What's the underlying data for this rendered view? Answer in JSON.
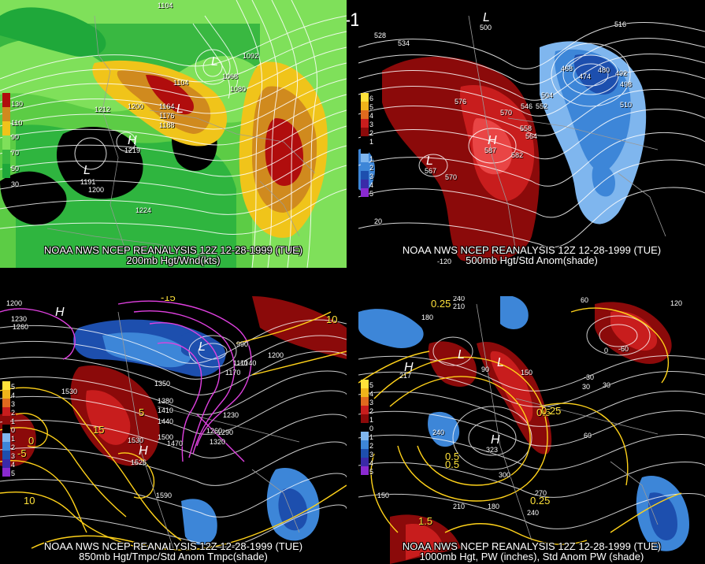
{
  "title": "12Z 12-28-1999 (TUE)",
  "panels": [
    {
      "caption_line1": "NOAA NWS NCEP REANALYSIS 12Z 12-28-1999 (TUE)",
      "caption_line2": "200mb Hgt/Wnd(kts)",
      "legend": [
        "130",
        "110",
        "90",
        "70",
        "50",
        "30"
      ],
      "labels": [
        "1104",
        "1092",
        "1068",
        "1080",
        "1200",
        "1212",
        "1164",
        "1176",
        "1188",
        "1200",
        "1224",
        "1219",
        "1191",
        "1104"
      ],
      "centers": [
        "L",
        "L",
        "H",
        "L"
      ]
    },
    {
      "caption_line1": "NOAA NWS NCEP REANALYSIS 12Z 12-28-1999 (TUE)",
      "caption_line2": "500mb Hgt/Std Anom(shade)",
      "legend": [
        "6",
        "5",
        "4",
        "3",
        "2",
        "1",
        "0",
        "1",
        "2",
        "3",
        "4",
        "5"
      ],
      "labels": [
        "528",
        "534",
        "516",
        "576",
        "570",
        "546",
        "552",
        "558",
        "564",
        "582",
        "504",
        "468",
        "474",
        "480",
        "492",
        "498",
        "510",
        "570",
        "567",
        "587",
        "20",
        "-120",
        "500"
      ],
      "centers": [
        "L",
        "L",
        "H"
      ]
    },
    {
      "caption_line1": "NOAA NWS NCEP REANALYSIS 12Z 12-28-1999 (TUE)",
      "caption_line2": "850mb Hgt/Tmpc/Std Anom Tmpc(shade)",
      "legend": [
        "5",
        "4",
        "3",
        "2",
        "1",
        "0",
        "1",
        "2",
        "3",
        "4",
        "5"
      ],
      "labels": [
        "1200",
        "1230",
        "1260",
        "1530",
        "1350",
        "1380",
        "1410",
        "1440",
        "1500",
        "1470",
        "1530",
        "1320",
        "1290",
        "1260",
        "1230",
        "1170",
        "1140",
        "1110",
        "1200",
        "1590",
        "1526",
        "990",
        "-15",
        "10",
        "5",
        "0",
        "-5",
        "10",
        "15"
      ],
      "centers": [
        "H",
        "L",
        "H"
      ]
    },
    {
      "caption_line1": "NOAA NWS NCEP REANALYSIS 12Z 12-28-1999 (TUE)",
      "caption_line2": "1000mb Hgt, PW (inches), Std Anom PW (shade)",
      "legend": [
        "5",
        "4",
        "3",
        "2",
        "1",
        "0",
        "1",
        "2",
        "3",
        "4",
        "5"
      ],
      "labels": [
        "240",
        "210",
        "180",
        "60",
        "120",
        "30",
        "0",
        "-30",
        "-60",
        "150",
        "90",
        "240",
        "300",
        "270",
        "240",
        "180",
        "210",
        "150",
        "60",
        "0.25",
        "0.5",
        "0.25",
        "0.5",
        "1.5",
        "0.25",
        "0.5",
        "323",
        "217",
        "30"
      ],
      "centers": [
        "L",
        "H",
        "L",
        "H"
      ]
    }
  ],
  "colors": {
    "background": "#000000",
    "wind_green_light": "#7fe05a",
    "wind_green_dark": "#1fa83a",
    "wind_yellow": "#f0c41a",
    "wind_orange": "#d08a1e",
    "wind_red": "#b00d0d",
    "anom_red_dark": "#8b0a0a",
    "anom_red": "#c81d1d",
    "anom_red_light": "#e94545",
    "anom_blue_light": "#7fb6ee",
    "anom_blue": "#3d86d8",
    "anom_blue_dark": "#1d4fae",
    "temp_contour": "#ffd21a",
    "cold_contour": "#e040e0"
  }
}
